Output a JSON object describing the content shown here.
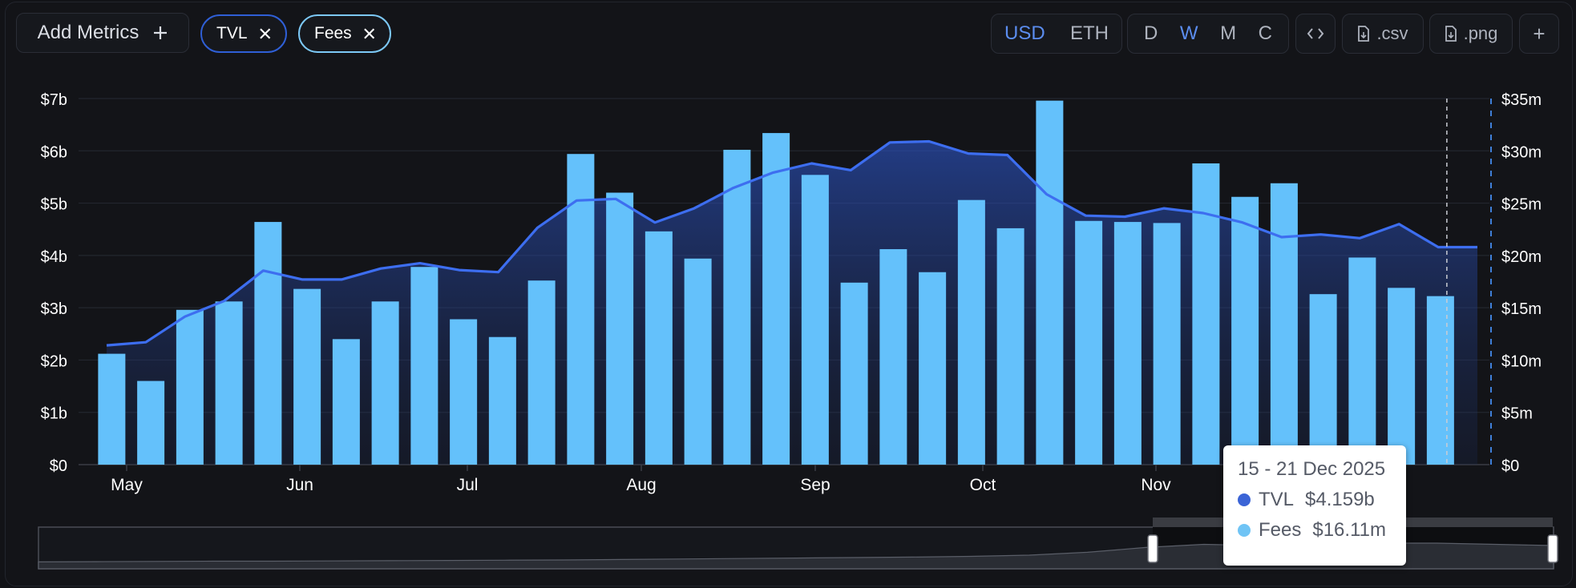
{
  "toolbar": {
    "add_metrics_label": "Add Metrics",
    "add_icon": "plus-icon",
    "chips": [
      {
        "label": "TVL",
        "color": "#2f5fd6"
      },
      {
        "label": "Fees",
        "color": "#7cc8f6"
      }
    ],
    "currency": [
      "USD",
      "ETH"
    ],
    "currency_active": "USD",
    "periods": [
      "D",
      "W",
      "M",
      "C"
    ],
    "period_active": "W",
    "embed_icon": "code-icon",
    "csv_label": ".csv",
    "png_label": ".png",
    "download_icon": "file-download-icon",
    "more_label": "+"
  },
  "chart_data": {
    "type": "bar",
    "x_month_labels": [
      "May",
      "Jun",
      "Jul",
      "Aug",
      "Sep",
      "Oct",
      "Nov"
    ],
    "left_axis": {
      "ticks": [
        "$0",
        "$1b",
        "$2b",
        "$3b",
        "$4b",
        "$5b",
        "$6b",
        "$7b"
      ],
      "range": [
        0,
        7
      ]
    },
    "right_axis": {
      "ticks": [
        "$0",
        "$5m",
        "$10m",
        "$15m",
        "$20m",
        "$25m",
        "$30m",
        "$35m"
      ],
      "range": [
        0,
        35
      ]
    },
    "series": [
      {
        "name": "Fees",
        "type": "bar",
        "axis": "right",
        "color": "#64c1fb",
        "values_m": [
          10.6,
          8.0,
          14.8,
          15.6,
          23.2,
          16.8,
          12.0,
          15.6,
          18.9,
          13.9,
          12.2,
          17.6,
          29.7,
          26.0,
          22.3,
          19.7,
          30.1,
          31.7,
          27.7,
          17.4,
          20.6,
          18.4,
          25.3,
          22.6,
          34.8,
          23.3,
          23.2,
          23.1,
          28.8,
          25.6,
          26.9,
          16.3,
          19.8,
          16.9,
          16.11
        ]
      },
      {
        "name": "TVL",
        "type": "area",
        "axis": "left",
        "color": "#3d6ef0",
        "values_b": [
          2.28,
          2.34,
          2.83,
          3.13,
          3.71,
          3.54,
          3.54,
          3.75,
          3.85,
          3.72,
          3.68,
          4.53,
          5.05,
          5.08,
          4.63,
          4.9,
          5.29,
          5.58,
          5.76,
          5.63,
          6.16,
          6.18,
          5.95,
          5.92,
          5.17,
          4.76,
          4.74,
          4.9,
          4.81,
          4.63,
          4.35,
          4.4,
          4.33,
          4.6,
          4.159,
          4.159
        ]
      }
    ],
    "hover": {
      "index": 34
    },
    "grid": true
  },
  "tooltip": {
    "date": "15 - 21 Dec 2025",
    "rows": [
      {
        "name": "TVL",
        "value": "$4.159b",
        "color": "#3b64d6"
      },
      {
        "name": "Fees",
        "value": "$16.11m",
        "color": "#70c4f5"
      }
    ]
  },
  "range_selector": {
    "overview_values": [
      0.02,
      0.03,
      0.04,
      0.05,
      0.05,
      0.06,
      0.07,
      0.08,
      0.09,
      0.1,
      0.12,
      0.14,
      0.16,
      0.18,
      0.2,
      0.22,
      0.25,
      0.3,
      0.42,
      0.62,
      0.75,
      0.7,
      0.78,
      0.8,
      0.8,
      0.75,
      0.7
    ]
  }
}
